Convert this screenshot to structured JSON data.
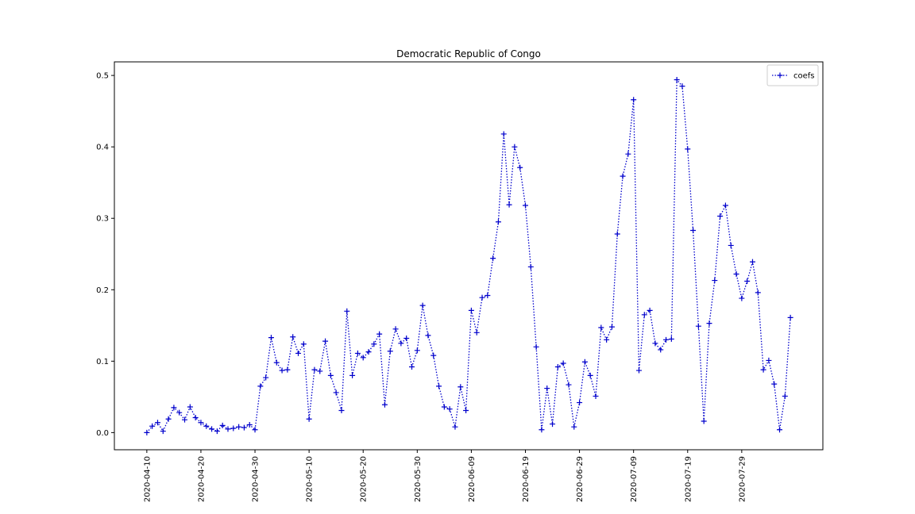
{
  "chart_data": {
    "type": "line",
    "title": "Democratic Republic of Congo",
    "x": [
      "2020-04-10",
      "2020-04-11",
      "2020-04-12",
      "2020-04-13",
      "2020-04-14",
      "2020-04-15",
      "2020-04-16",
      "2020-04-17",
      "2020-04-18",
      "2020-04-19",
      "2020-04-20",
      "2020-04-21",
      "2020-04-22",
      "2020-04-23",
      "2020-04-24",
      "2020-04-25",
      "2020-04-26",
      "2020-04-27",
      "2020-04-28",
      "2020-04-29",
      "2020-04-30",
      "2020-05-01",
      "2020-05-02",
      "2020-05-03",
      "2020-05-04",
      "2020-05-05",
      "2020-05-06",
      "2020-05-07",
      "2020-05-08",
      "2020-05-09",
      "2020-05-10",
      "2020-05-11",
      "2020-05-12",
      "2020-05-13",
      "2020-05-14",
      "2020-05-15",
      "2020-05-16",
      "2020-05-17",
      "2020-05-18",
      "2020-05-19",
      "2020-05-20",
      "2020-05-21",
      "2020-05-22",
      "2020-05-23",
      "2020-05-24",
      "2020-05-25",
      "2020-05-26",
      "2020-05-27",
      "2020-05-28",
      "2020-05-29",
      "2020-05-30",
      "2020-05-31",
      "2020-06-01",
      "2020-06-02",
      "2020-06-03",
      "2020-06-04",
      "2020-06-05",
      "2020-06-06",
      "2020-06-07",
      "2020-06-08",
      "2020-06-09",
      "2020-06-10",
      "2020-06-11",
      "2020-06-12",
      "2020-06-13",
      "2020-06-14",
      "2020-06-15",
      "2020-06-16",
      "2020-06-17",
      "2020-06-18",
      "2020-06-19",
      "2020-06-20",
      "2020-06-21",
      "2020-06-22",
      "2020-06-23",
      "2020-06-24",
      "2020-06-25",
      "2020-06-26",
      "2020-06-27",
      "2020-06-28",
      "2020-06-29",
      "2020-06-30",
      "2020-07-01",
      "2020-07-02",
      "2020-07-03",
      "2020-07-04",
      "2020-07-05",
      "2020-07-06",
      "2020-07-07",
      "2020-07-08",
      "2020-07-09",
      "2020-07-10",
      "2020-07-11",
      "2020-07-12",
      "2020-07-13",
      "2020-07-14",
      "2020-07-15",
      "2020-07-16",
      "2020-07-17",
      "2020-07-18",
      "2020-07-19",
      "2020-07-20",
      "2020-07-21",
      "2020-07-22",
      "2020-07-23",
      "2020-07-24",
      "2020-07-25",
      "2020-07-26",
      "2020-07-27",
      "2020-07-28",
      "2020-07-29",
      "2020-07-30",
      "2020-07-31",
      "2020-08-01",
      "2020-08-02",
      "2020-08-03",
      "2020-08-04",
      "2020-08-05",
      "2020-08-06",
      "2020-08-07"
    ],
    "series": [
      {
        "name": "coefs",
        "color": "#0000cc",
        "linestyle": "dotted",
        "marker": "+",
        "values": [
          0.0,
          0.009,
          0.014,
          0.002,
          0.019,
          0.035,
          0.028,
          0.018,
          0.036,
          0.021,
          0.014,
          0.009,
          0.005,
          0.002,
          0.01,
          0.005,
          0.006,
          0.008,
          0.007,
          0.011,
          0.004,
          0.065,
          0.077,
          0.133,
          0.098,
          0.087,
          0.088,
          0.134,
          0.111,
          0.124,
          0.019,
          0.088,
          0.086,
          0.128,
          0.08,
          0.056,
          0.031,
          0.17,
          0.08,
          0.111,
          0.105,
          0.113,
          0.124,
          0.138,
          0.039,
          0.114,
          0.145,
          0.125,
          0.132,
          0.092,
          0.115,
          0.178,
          0.136,
          0.108,
          0.065,
          0.036,
          0.033,
          0.008,
          0.064,
          0.031,
          0.171,
          0.14,
          0.189,
          0.192,
          0.244,
          0.295,
          0.418,
          0.319,
          0.4,
          0.371,
          0.318,
          0.232,
          0.12,
          0.004,
          0.062,
          0.012,
          0.092,
          0.097,
          0.067,
          0.008,
          0.042,
          0.099,
          0.08,
          0.051,
          0.147,
          0.13,
          0.148,
          0.278,
          0.359,
          0.39,
          0.466,
          0.087,
          0.165,
          0.171,
          0.125,
          0.116,
          0.13,
          0.131,
          0.494,
          0.485,
          0.397,
          0.283,
          0.149,
          0.016,
          0.153,
          0.213,
          0.303,
          0.318,
          0.262,
          0.222,
          0.188,
          0.212,
          0.239,
          0.196,
          0.088,
          0.101,
          0.068,
          0.004,
          0.051,
          0.161
        ]
      }
    ],
    "xlim": [
      "2020-04-04",
      "2020-08-13"
    ],
    "xticks": [
      "2020-04-10",
      "2020-04-20",
      "2020-04-30",
      "2020-05-10",
      "2020-05-20",
      "2020-05-30",
      "2020-06-09",
      "2020-06-19",
      "2020-06-29",
      "2020-07-09",
      "2020-07-19",
      "2020-07-29"
    ],
    "ylim": [
      -0.024,
      0.519
    ],
    "yticks": [
      {
        "value": 0,
        "label": "0.0"
      },
      0.1,
      0.2,
      0.3,
      0.4,
      0.5
    ],
    "legend": "upper right",
    "grid": false
  }
}
